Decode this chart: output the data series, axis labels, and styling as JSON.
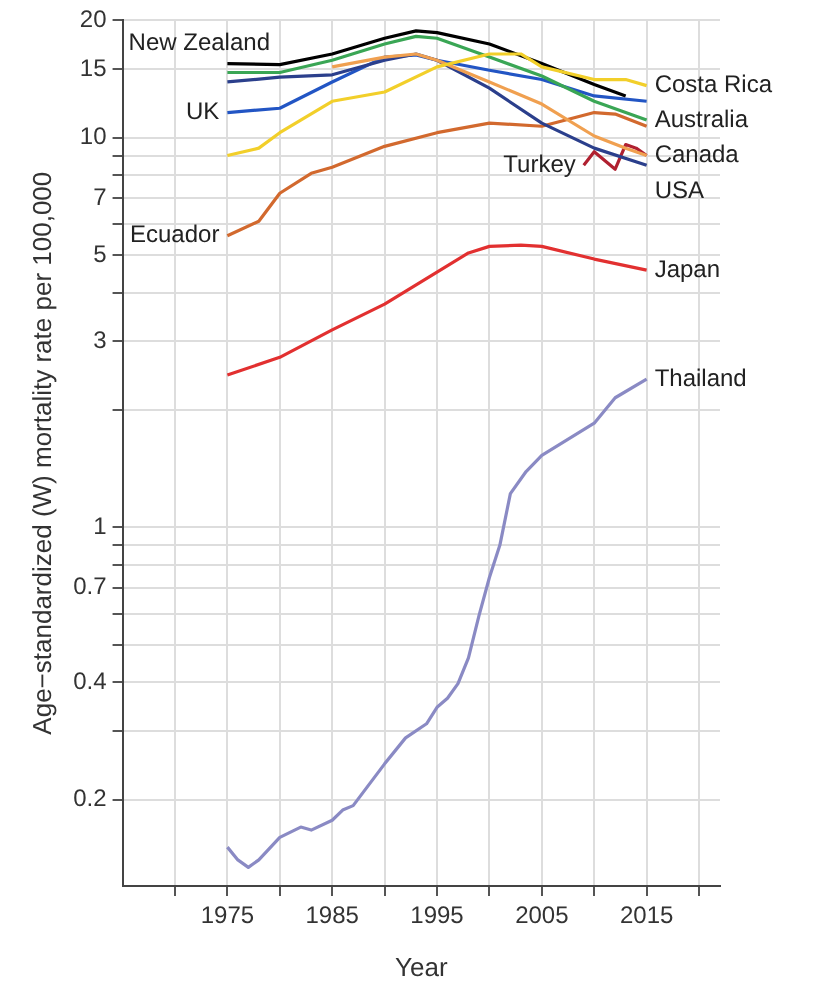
{
  "chart_data": {
    "type": "line",
    "xlabel": "Year",
    "ylabel": "Age−standardized (W) mortality rate per 100,000",
    "log": "y",
    "grid": true,
    "legend": false,
    "xlim": [
      1965,
      2022
    ],
    "xticks": [
      {
        "value": 1970,
        "label": null
      },
      1975,
      {
        "value": 1980,
        "label": null
      },
      1985,
      {
        "value": 1990,
        "label": null
      },
      1995,
      {
        "value": 2000,
        "label": null
      },
      2005,
      {
        "value": 2010,
        "label": null
      },
      2015,
      {
        "value": 2020,
        "label": null
      }
    ],
    "ylim": [
      0.12,
      20
    ],
    "yticks": [
      0.2,
      {
        "value": 0.3,
        "label": null
      },
      0.4,
      {
        "value": 0.5,
        "label": null
      },
      {
        "value": 0.6,
        "label": null
      },
      0.7,
      {
        "value": 0.8,
        "label": null
      },
      {
        "value": 0.9,
        "label": null
      },
      1,
      {
        "value": 2,
        "label": null
      },
      3,
      {
        "value": 4,
        "label": null
      },
      5,
      {
        "value": 6,
        "label": null
      },
      7,
      {
        "value": 8,
        "label": null
      },
      {
        "value": 9,
        "label": null
      },
      10,
      15,
      20
    ],
    "series": [
      {
        "name": "Costa Rica",
        "color": "#f2cf2a",
        "x": [
          1975,
          1978,
          1980,
          1985,
          1990,
          1995,
          2000,
          2003,
          2005,
          2010,
          2013,
          2015
        ],
        "values": [
          9.0,
          9.4,
          10.3,
          12.4,
          13.1,
          15.2,
          16.4,
          16.4,
          15.2,
          14.1,
          14.1,
          13.6
        ]
      },
      {
        "name": "Australia",
        "color": "#3aa655",
        "x": [
          1975,
          1980,
          1985,
          1990,
          1993,
          1995,
          2000,
          2005,
          2010,
          2015
        ],
        "values": [
          14.7,
          14.7,
          15.8,
          17.4,
          18.2,
          18.0,
          16.1,
          14.4,
          12.4,
          11.1
        ]
      },
      {
        "name": "Canada",
        "color": "#f0a050",
        "x": [
          1985,
          1990,
          1993,
          1995,
          2000,
          2005,
          2010,
          2013,
          2015
        ],
        "values": [
          15.2,
          16.1,
          16.4,
          15.8,
          13.9,
          12.2,
          10.1,
          9.4,
          9.0
        ]
      },
      {
        "name": "USA",
        "color": "#2b3f8c",
        "x": [
          1975,
          1980,
          1985,
          1990,
          1993,
          1995,
          2000,
          2005,
          2010,
          2015
        ],
        "values": [
          13.9,
          14.3,
          14.5,
          15.8,
          16.4,
          15.8,
          13.4,
          10.9,
          9.4,
          8.5
        ]
      },
      {
        "name": "Japan",
        "color": "#e23030",
        "x": [
          1975,
          1980,
          1985,
          1990,
          1995,
          1998,
          2000,
          2003,
          2005,
          2010,
          2015
        ],
        "values": [
          2.46,
          2.73,
          3.21,
          3.74,
          4.52,
          5.06,
          5.26,
          5.3,
          5.26,
          4.88,
          4.57
        ]
      },
      {
        "name": "Thailand",
        "color": "#8a8ac4",
        "x": [
          1975,
          1976,
          1977,
          1978,
          1980,
          1982,
          1983,
          1985,
          1986,
          1987,
          1990,
          1992,
          1994,
          1995,
          1996,
          1997,
          1998,
          1999,
          2000,
          2001,
          2002,
          2003.5,
          2005,
          2010,
          2012,
          2015
        ],
        "values": [
          0.151,
          0.14,
          0.134,
          0.14,
          0.16,
          0.17,
          0.167,
          0.177,
          0.188,
          0.193,
          0.247,
          0.288,
          0.313,
          0.345,
          0.364,
          0.397,
          0.462,
          0.592,
          0.743,
          0.9,
          1.22,
          1.39,
          1.53,
          1.85,
          2.15,
          2.4
        ]
      },
      {
        "name": "Turkey",
        "color": "#b02030",
        "x": [
          2009,
          2010,
          2012,
          2013,
          2014,
          2015
        ],
        "values": [
          8.5,
          9.2,
          8.3,
          9.6,
          9.4,
          9.0
        ]
      },
      {
        "name": "New Zealand",
        "color": "#000000",
        "x": [
          1975,
          1980,
          1985,
          1990,
          1993,
          1995,
          2000,
          2005,
          2010,
          2013
        ],
        "values": [
          15.5,
          15.4,
          16.4,
          18.0,
          18.8,
          18.6,
          17.4,
          15.5,
          13.7,
          12.8
        ]
      },
      {
        "name": "UK",
        "color": "#2255c4",
        "x": [
          1975,
          1980,
          1985,
          1990,
          1993,
          1995,
          2000,
          2005,
          2010,
          2015
        ],
        "values": [
          11.6,
          11.9,
          13.9,
          16.1,
          16.3,
          15.8,
          14.9,
          14.1,
          12.8,
          12.4
        ]
      },
      {
        "name": "Ecuador",
        "color": "#d2692e",
        "x": [
          1975,
          1978,
          1980,
          1983,
          1985,
          1990,
          1995,
          2000,
          2005,
          2010,
          2012,
          2015
        ],
        "values": [
          5.6,
          6.1,
          7.2,
          8.1,
          8.4,
          9.5,
          10.3,
          10.9,
          10.7,
          11.6,
          11.5,
          10.7
        ]
      }
    ]
  }
}
